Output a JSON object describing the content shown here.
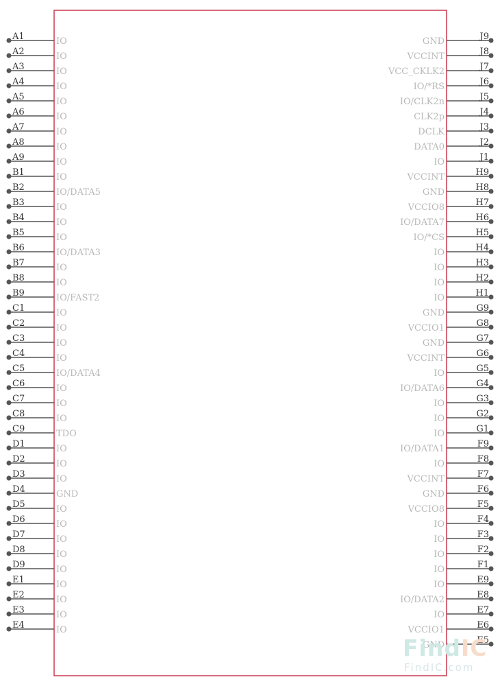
{
  "component": {
    "body_color": "#c8384e",
    "pin_color": "#555555",
    "left_pins": [
      {
        "num": "A1",
        "name": "IO"
      },
      {
        "num": "A2",
        "name": "IO"
      },
      {
        "num": "A3",
        "name": "IO"
      },
      {
        "num": "A4",
        "name": "IO"
      },
      {
        "num": "A5",
        "name": "IO"
      },
      {
        "num": "A6",
        "name": "IO"
      },
      {
        "num": "A7",
        "name": "IO"
      },
      {
        "num": "A8",
        "name": "IO"
      },
      {
        "num": "A9",
        "name": "IO"
      },
      {
        "num": "B1",
        "name": "IO"
      },
      {
        "num": "B2",
        "name": "IO/DATA5"
      },
      {
        "num": "B3",
        "name": "IO"
      },
      {
        "num": "B4",
        "name": "IO"
      },
      {
        "num": "B5",
        "name": "IO"
      },
      {
        "num": "B6",
        "name": "IO/DATA3"
      },
      {
        "num": "B7",
        "name": "IO"
      },
      {
        "num": "B8",
        "name": "IO"
      },
      {
        "num": "B9",
        "name": "IO/FAST2"
      },
      {
        "num": "C1",
        "name": "IO"
      },
      {
        "num": "C2",
        "name": "IO"
      },
      {
        "num": "C3",
        "name": "IO"
      },
      {
        "num": "C4",
        "name": "IO"
      },
      {
        "num": "C5",
        "name": "IO/DATA4"
      },
      {
        "num": "C6",
        "name": "IO"
      },
      {
        "num": "C7",
        "name": "IO"
      },
      {
        "num": "C8",
        "name": "IO"
      },
      {
        "num": "C9",
        "name": "TDO"
      },
      {
        "num": "D1",
        "name": "IO"
      },
      {
        "num": "D2",
        "name": "IO"
      },
      {
        "num": "D3",
        "name": "IO"
      },
      {
        "num": "D4",
        "name": "GND"
      },
      {
        "num": "D5",
        "name": "IO"
      },
      {
        "num": "D6",
        "name": "IO"
      },
      {
        "num": "D7",
        "name": "IO"
      },
      {
        "num": "D8",
        "name": "IO"
      },
      {
        "num": "D9",
        "name": "IO"
      },
      {
        "num": "E1",
        "name": "IO"
      },
      {
        "num": "E2",
        "name": "IO"
      },
      {
        "num": "E3",
        "name": "IO"
      },
      {
        "num": "E4",
        "name": "IO"
      }
    ],
    "right_pins": [
      {
        "num": "J9",
        "name": "GND"
      },
      {
        "num": "J8",
        "name": "VCCINT"
      },
      {
        "num": "J7",
        "name": "VCC_CKLK2"
      },
      {
        "num": "J6",
        "name": "IO/*RS"
      },
      {
        "num": "J5",
        "name": "IO/CLK2n"
      },
      {
        "num": "J4",
        "name": "CLK2p"
      },
      {
        "num": "J3",
        "name": "DCLK"
      },
      {
        "num": "J2",
        "name": "DATA0"
      },
      {
        "num": "J1",
        "name": "IO"
      },
      {
        "num": "H9",
        "name": "VCCINT"
      },
      {
        "num": "H8",
        "name": "GND"
      },
      {
        "num": "H7",
        "name": "VCCIO8"
      },
      {
        "num": "H6",
        "name": "IO/DATA7"
      },
      {
        "num": "H5",
        "name": "IO/*CS"
      },
      {
        "num": "H4",
        "name": "IO"
      },
      {
        "num": "H3",
        "name": "IO"
      },
      {
        "num": "H2",
        "name": "IO"
      },
      {
        "num": "H1",
        "name": "IO"
      },
      {
        "num": "G9",
        "name": "GND"
      },
      {
        "num": "G8",
        "name": "VCCIO1"
      },
      {
        "num": "G7",
        "name": "GND"
      },
      {
        "num": "G6",
        "name": "VCCINT"
      },
      {
        "num": "G5",
        "name": "IO"
      },
      {
        "num": "G4",
        "name": "IO/DATA6"
      },
      {
        "num": "G3",
        "name": "IO"
      },
      {
        "num": "G2",
        "name": "IO"
      },
      {
        "num": "G1",
        "name": "IO"
      },
      {
        "num": "F9",
        "name": "IO/DATA1"
      },
      {
        "num": "F8",
        "name": "IO"
      },
      {
        "num": "F7",
        "name": "VCCINT"
      },
      {
        "num": "F6",
        "name": "GND"
      },
      {
        "num": "F5",
        "name": "VCCIO8"
      },
      {
        "num": "F4",
        "name": "IO"
      },
      {
        "num": "F3",
        "name": "IO"
      },
      {
        "num": "F2",
        "name": "IO"
      },
      {
        "num": "F1",
        "name": "IO"
      },
      {
        "num": "E9",
        "name": "IO"
      },
      {
        "num": "E8",
        "name": "IO/DATA2"
      },
      {
        "num": "E7",
        "name": "IO"
      },
      {
        "num": "E6",
        "name": "VCCIO1"
      },
      {
        "num": "E5",
        "name": "GND"
      }
    ]
  },
  "watermark": {
    "logo_part1": "Find",
    "logo_part2": "IC",
    "url": "FindIC.com",
    "color_part1": "#cfe9e4",
    "color_part2": "#f7dccb"
  }
}
